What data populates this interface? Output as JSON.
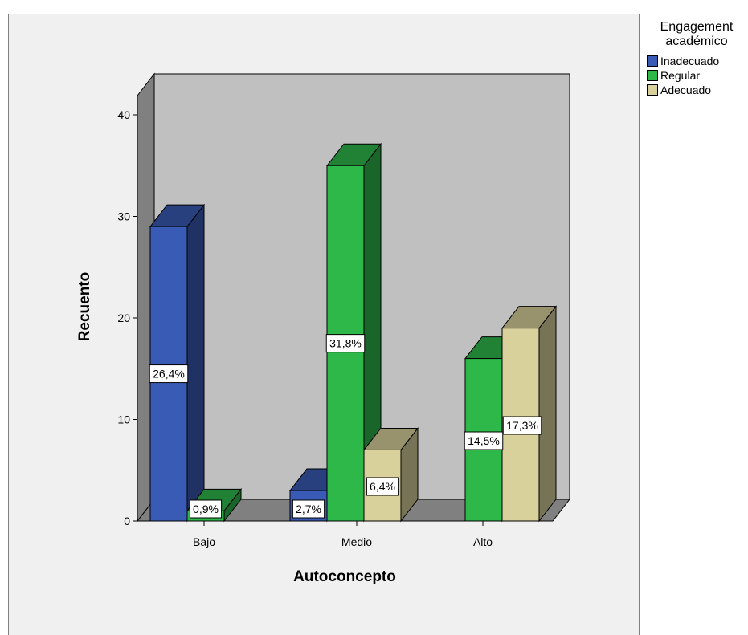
{
  "chart_data": {
    "type": "bar",
    "subtype": "3d-clustered",
    "title": "",
    "xlabel": "Autoconcepto",
    "ylabel": "Recuento",
    "categories": [
      "Bajo",
      "Medio",
      "Alto"
    ],
    "ylim": [
      0,
      40
    ],
    "yticks": [
      0,
      10,
      20,
      30,
      40
    ],
    "ytick_labels": [
      "0",
      "10",
      "20",
      "30",
      "40"
    ],
    "grid": false,
    "legend_position": "right",
    "legend": {
      "title": "Engagement\nacadémico"
    },
    "series": [
      {
        "name": "Inadecuado",
        "color": "#3a5bb5",
        "values": [
          29,
          3,
          0
        ],
        "labels": [
          "26,4%",
          "2,7%",
          ""
        ]
      },
      {
        "name": "Regular",
        "color": "#2fb84a",
        "values": [
          1,
          35,
          16
        ],
        "labels": [
          "0,9%",
          "31,8%",
          "14,5%"
        ]
      },
      {
        "name": "Adecuado",
        "color": "#d9d19c",
        "values": [
          0,
          7,
          19
        ],
        "labels": [
          "",
          "6,4%",
          "17,3%"
        ]
      }
    ]
  }
}
